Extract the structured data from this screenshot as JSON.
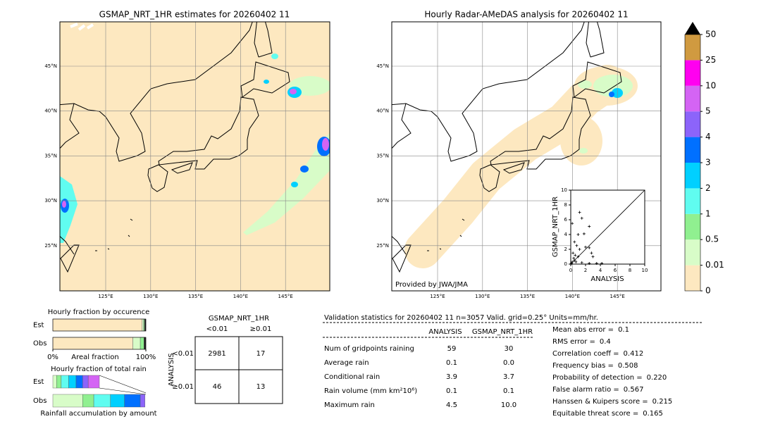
{
  "left_map": {
    "title": "GSMAP_NRT_1HR estimates for 20260402 11",
    "lat_labels": [
      "45°N",
      "40°N",
      "35°N",
      "30°N",
      "25°N"
    ],
    "lon_labels": [
      "125°E",
      "130°E",
      "135°E",
      "140°E",
      "145°E"
    ]
  },
  "right_map": {
    "title": "Hourly Radar-AMeDAS analysis for 20260402 11",
    "lat_labels": [
      "45°N",
      "40°N",
      "35°N",
      "30°N",
      "25°N"
    ],
    "lon_labels": [
      "125°E",
      "130°E",
      "135°E",
      "140°E",
      "145°E"
    ],
    "credit": "Provided by JWA/JMA"
  },
  "chart_data": [
    {
      "type": "scatter",
      "xlabel": "ANALYSIS",
      "ylabel": "GSMAP_NRT_1HR",
      "xlim": [
        0,
        10
      ],
      "ylim": [
        0,
        10
      ],
      "xticks": [
        0,
        2,
        4,
        6,
        8,
        10
      ],
      "yticks": [
        0,
        2,
        4,
        6,
        8,
        10
      ],
      "color": "#000000",
      "x": [
        1.2,
        1.5,
        2.5,
        1.0,
        1.8,
        0.5,
        0.8,
        1.2,
        2.0,
        2.5,
        0.3,
        0.6,
        1.0,
        0.5,
        0.2,
        1.5,
        2.5,
        3.5,
        4.2,
        0.1,
        3.0,
        2.8,
        0.2,
        0.4,
        0.7
      ],
      "y": [
        7.0,
        6.2,
        5.1,
        4.0,
        4.1,
        3.0,
        2.5,
        2.0,
        2.3,
        2.2,
        1.5,
        1.2,
        1.0,
        0.5,
        0.3,
        0.2,
        0.1,
        0.1,
        0.1,
        0.1,
        1.0,
        1.5,
        5.5,
        0.8,
        0.3
      ]
    },
    {
      "type": "stacked-hbar",
      "title": "Hourly fraction by occurence",
      "xlabel": "Areal fraction",
      "categories": [
        "Est",
        "Obs"
      ],
      "xlim": [
        0,
        100
      ],
      "xticks": [
        {
          "value": 0,
          "label": "0%"
        },
        {
          "value": 100,
          "label": "100%"
        }
      ],
      "series": [
        {
          "color": "#fde8c0",
          "values": [
            96,
            86
          ]
        },
        {
          "color": "#d8fcc8",
          "values": [
            1.5,
            8
          ]
        },
        {
          "color": "#90f090",
          "values": [
            1,
            4
          ]
        },
        {
          "color": "#222222",
          "values": [
            1.5,
            2
          ]
        }
      ]
    },
    {
      "type": "stacked-hbar",
      "title": "Hourly fraction of total rain",
      "xlabel": "Rainfall accumulation by amount",
      "categories": [
        "Est",
        "Obs"
      ],
      "xlim": [
        0,
        100
      ],
      "series": [
        {
          "color": "#d8fcc8",
          "values": [
            4,
            32
          ]
        },
        {
          "color": "#90f090",
          "values": [
            5,
            12
          ]
        },
        {
          "color": "#60fcf0",
          "values": [
            8,
            18
          ]
        },
        {
          "color": "#00d0ff",
          "values": [
            8,
            15
          ]
        },
        {
          "color": "#0070ff",
          "values": [
            7,
            17
          ]
        },
        {
          "color": "#8c64fa",
          "values": [
            6,
            5
          ]
        },
        {
          "color": "#d464f4",
          "values": [
            12,
            0
          ]
        }
      ]
    },
    {
      "type": "colorbar",
      "ticks": [
        0,
        0.01,
        0.5,
        1,
        2,
        3,
        4,
        5,
        10,
        25,
        50
      ],
      "colors": [
        "#fde8c0",
        "#d8fcc8",
        "#90f090",
        "#60fcf0",
        "#00d0ff",
        "#0070ff",
        "#8c64fa",
        "#d464f4",
        "#ff00f0",
        "#d09a40"
      ],
      "extend_color": "#000000"
    }
  ],
  "contingency": {
    "title": "GSMAP_NRT_1HR",
    "columns": [
      "<0.01",
      "≥0.01"
    ],
    "row_title": "ANALYSIS",
    "rows": [
      {
        "label": "<0.01",
        "cells": [
          "2981",
          "17"
        ]
      },
      {
        "label": "≥0.01",
        "cells": [
          "46",
          "13"
        ]
      }
    ]
  },
  "validation": {
    "header": "Validation statistics for 20260402 11  n=3057 Valid. grid=0.25° Units=mm/hr.",
    "columns": [
      "ANALYSIS",
      "GSMAP_NRT_1HR"
    ],
    "rows": [
      {
        "label": "Num of gridpoints raining",
        "values": [
          "59",
          "30"
        ]
      },
      {
        "label": "Average rain",
        "values": [
          "0.1",
          "0.0"
        ]
      },
      {
        "label": "Conditional rain",
        "values": [
          "3.9",
          "3.7"
        ]
      },
      {
        "label": "Rain volume (mm km²10⁶)",
        "values": [
          "0.1",
          "0.1"
        ]
      },
      {
        "label": "Maximum rain",
        "values": [
          "4.5",
          "10.0"
        ]
      }
    ],
    "scores": [
      {
        "label": "Mean abs error =",
        "value": "0.1"
      },
      {
        "label": "RMS error =",
        "value": "0.4"
      },
      {
        "label": "Correlation coeff =",
        "value": "0.412"
      },
      {
        "label": "Frequency bias =",
        "value": "0.508"
      },
      {
        "label": "Probability of detection =",
        "value": "0.220"
      },
      {
        "label": "False alarm ratio =",
        "value": "0.567"
      },
      {
        "label": "Hanssen & Kuipers score =",
        "value": "0.215"
      },
      {
        "label": "Equitable threat score =",
        "value": "0.165"
      }
    ]
  }
}
